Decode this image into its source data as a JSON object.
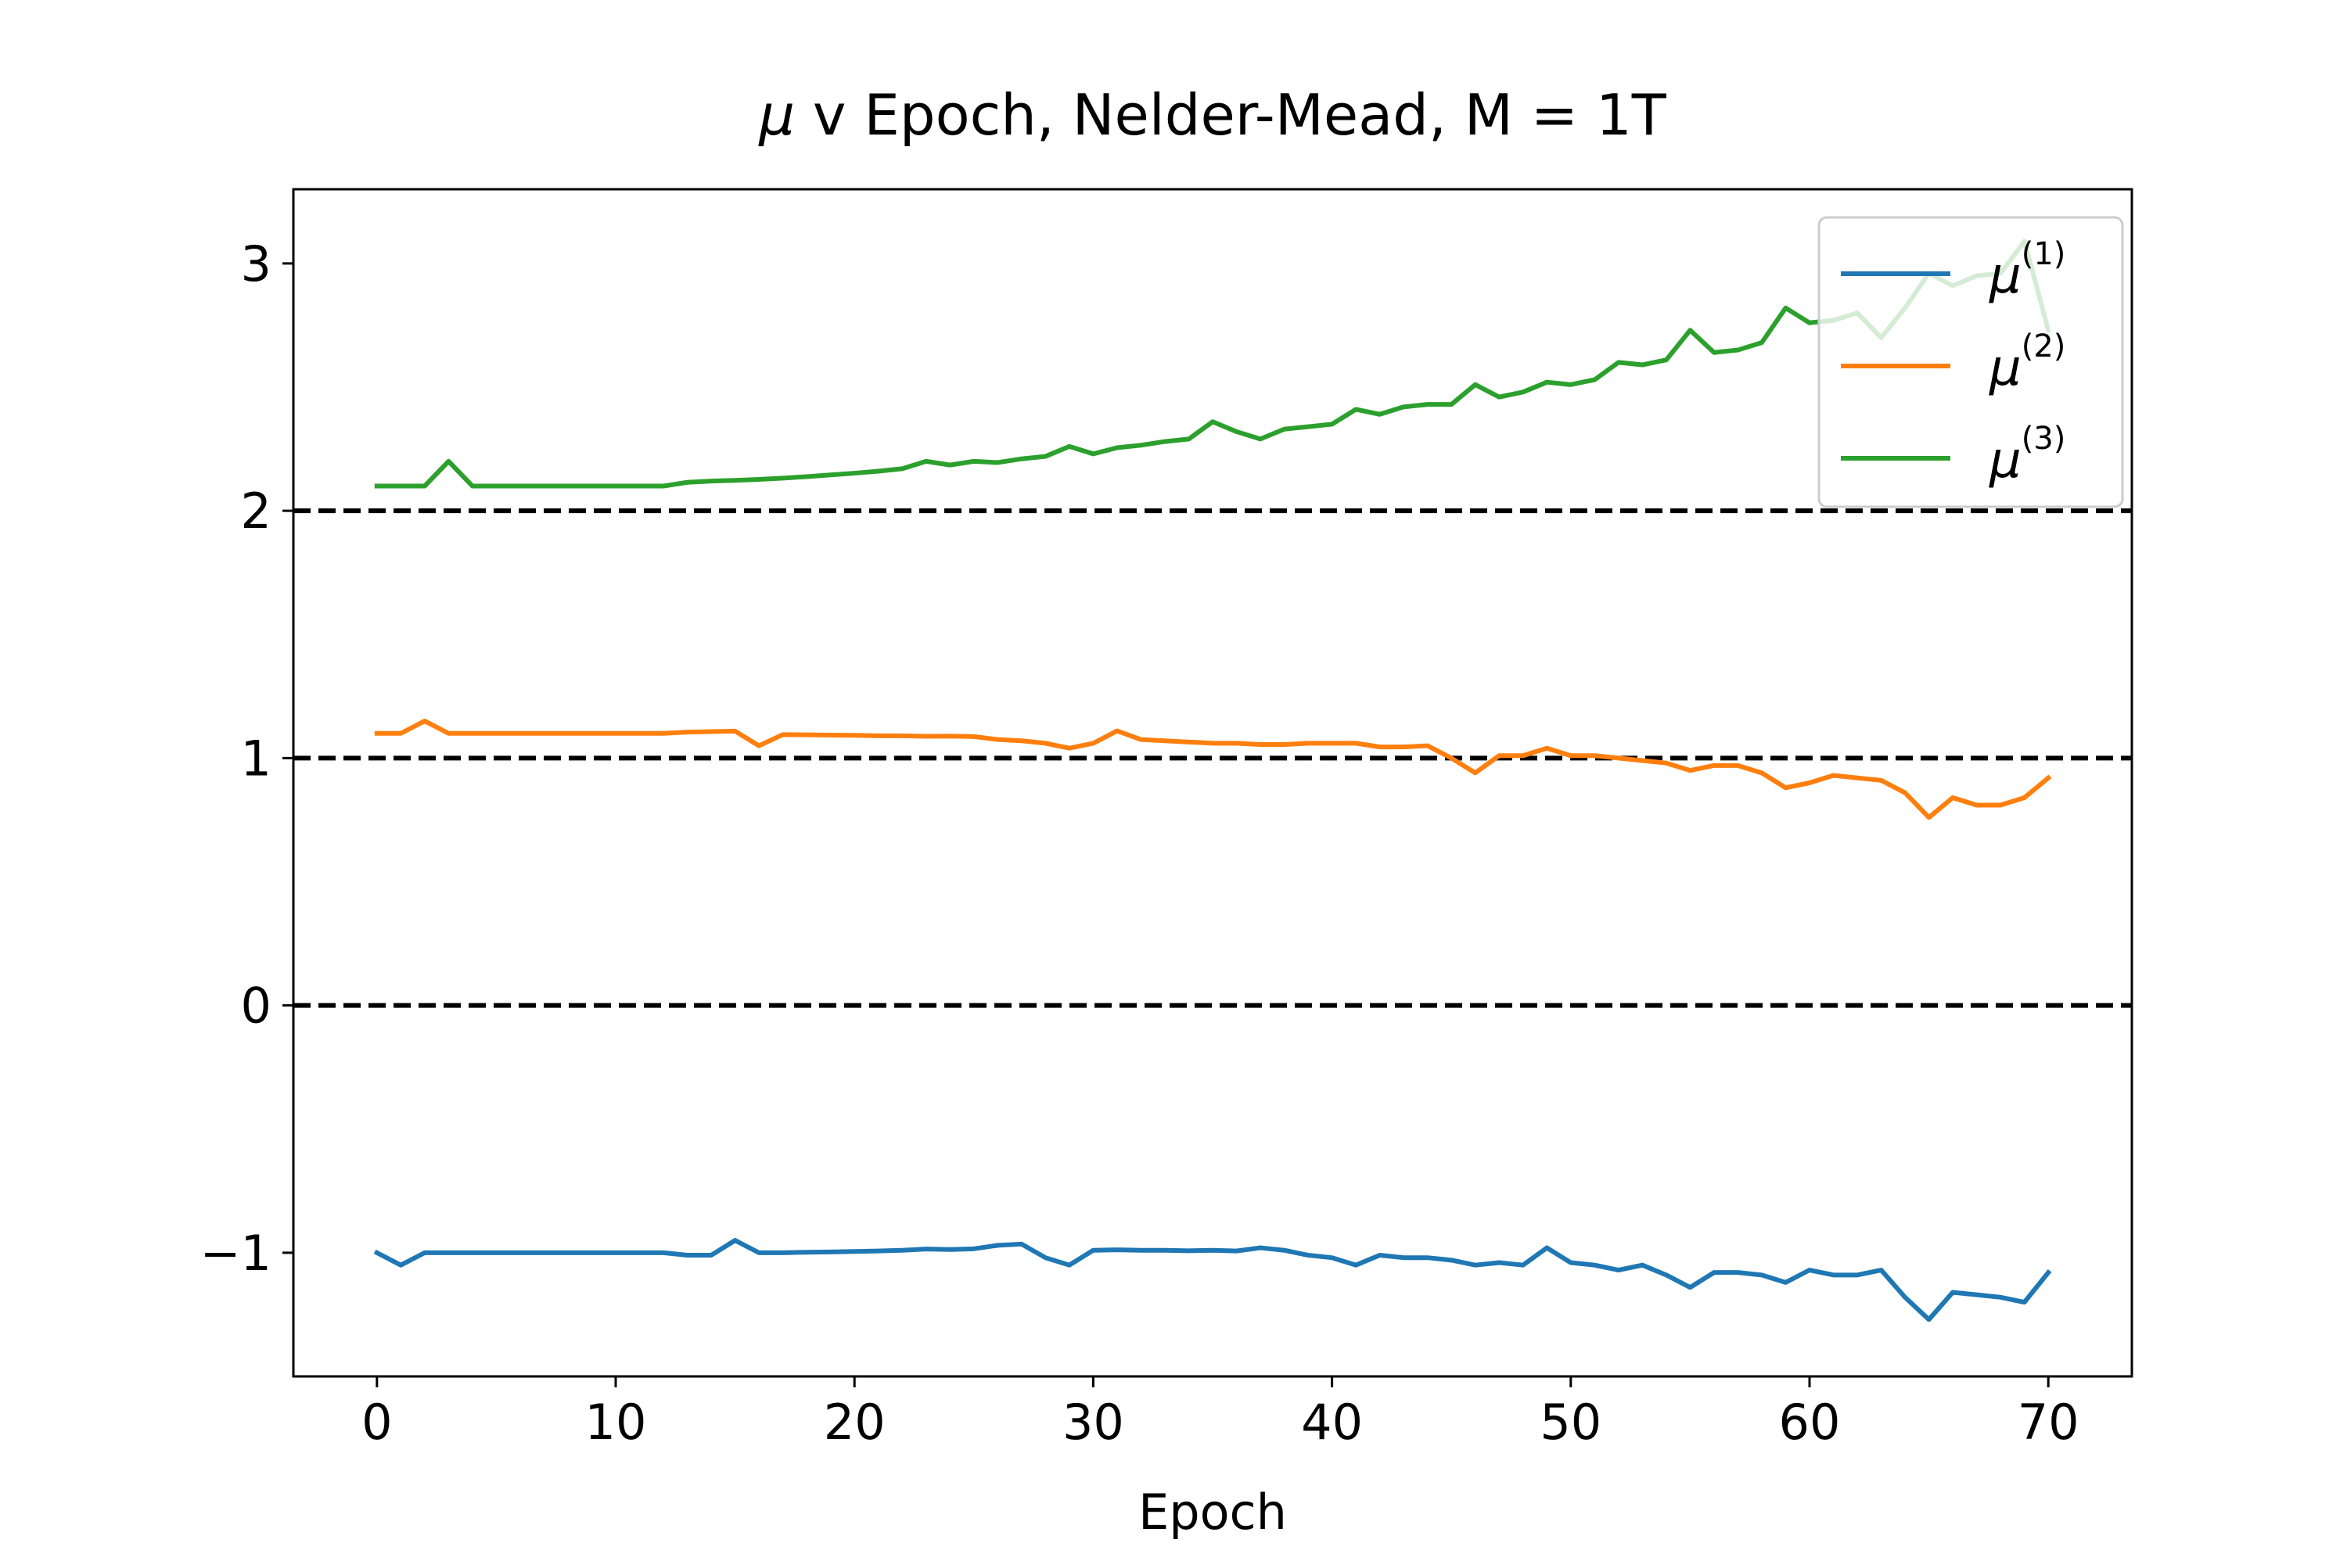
{
  "chart_data": {
    "type": "line",
    "title": "μ v Epoch, Nelder-Mead, M = 1T",
    "title_mu": "μ",
    "title_rest": " v Epoch, Nelder-Mead, M = 1T",
    "xlabel": "Epoch",
    "ylabel": "",
    "xlim": [
      -3.5,
      73.5
    ],
    "ylim": [
      -1.5,
      3.3
    ],
    "xticks": [
      0,
      10,
      20,
      30,
      40,
      50,
      60,
      70
    ],
    "xtick_labels": [
      "0",
      "10",
      "20",
      "30",
      "40",
      "50",
      "60",
      "70"
    ],
    "yticks": [
      -1,
      0,
      1,
      2,
      3
    ],
    "ytick_labels": [
      "−1",
      "0",
      "1",
      "2",
      "3"
    ],
    "grid": false,
    "legend_position": "top-right",
    "reference_lines": [
      {
        "y": 0,
        "style": "dashed",
        "color": "#000000"
      },
      {
        "y": 1,
        "style": "dashed",
        "color": "#000000"
      },
      {
        "y": 2,
        "style": "dashed",
        "color": "#000000"
      }
    ],
    "x": [
      0,
      1,
      2,
      3,
      4,
      5,
      6,
      7,
      8,
      9,
      10,
      11,
      12,
      13,
      14,
      15,
      16,
      17,
      18,
      19,
      20,
      21,
      22,
      23,
      24,
      25,
      26,
      27,
      28,
      29,
      30,
      31,
      32,
      33,
      34,
      35,
      36,
      37,
      38,
      39,
      40,
      41,
      42,
      43,
      44,
      45,
      46,
      47,
      48,
      49,
      50,
      51,
      52,
      53,
      54,
      55,
      56,
      57,
      58,
      59,
      60,
      61,
      62,
      63,
      64,
      65,
      66,
      67,
      68,
      69,
      70
    ],
    "series": [
      {
        "name": "μ(1)",
        "symbol": "μ",
        "superscript": "(1)",
        "color": "#1f77b4",
        "values": [
          -1.0,
          -1.05,
          -1.0,
          -1.0,
          -1.0,
          -1.0,
          -1.0,
          -1.0,
          -1.0,
          -1.0,
          -1.0,
          -1.0,
          -1.0,
          -1.01,
          -1.01,
          -0.95,
          -1.0,
          -1.0,
          -0.998,
          -0.997,
          -0.995,
          -0.993,
          -0.99,
          -0.985,
          -0.987,
          -0.984,
          -0.97,
          -0.965,
          -1.02,
          -1.05,
          -0.99,
          -0.988,
          -0.99,
          -0.99,
          -0.992,
          -0.99,
          -0.993,
          -0.98,
          -0.99,
          -1.01,
          -1.02,
          -1.05,
          -1.01,
          -1.02,
          -1.02,
          -1.03,
          -1.05,
          -1.04,
          -1.05,
          -0.98,
          -1.04,
          -1.05,
          -1.07,
          -1.05,
          -1.09,
          -1.14,
          -1.08,
          -1.08,
          -1.09,
          -1.12,
          -1.07,
          -1.09,
          -1.09,
          -1.07,
          -1.18,
          -1.27,
          -1.16,
          -1.17,
          -1.18,
          -1.2,
          -1.08
        ]
      },
      {
        "name": "μ(2)",
        "symbol": "μ",
        "superscript": "(2)",
        "color": "#ff7f0e",
        "values": [
          1.1,
          1.1,
          1.15,
          1.1,
          1.1,
          1.1,
          1.1,
          1.1,
          1.1,
          1.1,
          1.1,
          1.1,
          1.1,
          1.105,
          1.107,
          1.109,
          1.05,
          1.095,
          1.094,
          1.093,
          1.092,
          1.09,
          1.09,
          1.088,
          1.089,
          1.087,
          1.075,
          1.07,
          1.06,
          1.04,
          1.06,
          1.11,
          1.075,
          1.07,
          1.065,
          1.06,
          1.06,
          1.055,
          1.055,
          1.06,
          1.06,
          1.06,
          1.045,
          1.045,
          1.05,
          1.0,
          0.94,
          1.01,
          1.01,
          1.04,
          1.01,
          1.01,
          1.0,
          0.99,
          0.98,
          0.95,
          0.97,
          0.97,
          0.94,
          0.88,
          0.9,
          0.93,
          0.92,
          0.91,
          0.86,
          0.76,
          0.84,
          0.81,
          0.81,
          0.84,
          0.92
        ]
      },
      {
        "name": "μ(3)",
        "symbol": "μ",
        "superscript": "(3)",
        "color": "#2ca02c",
        "values": [
          2.1,
          2.1,
          2.1,
          2.2,
          2.1,
          2.1,
          2.1,
          2.1,
          2.1,
          2.1,
          2.1,
          2.1,
          2.1,
          2.115,
          2.12,
          2.123,
          2.127,
          2.132,
          2.138,
          2.145,
          2.152,
          2.16,
          2.17,
          2.2,
          2.185,
          2.2,
          2.195,
          2.21,
          2.22,
          2.26,
          2.23,
          2.255,
          2.265,
          2.28,
          2.29,
          2.36,
          2.32,
          2.29,
          2.33,
          2.34,
          2.35,
          2.41,
          2.39,
          2.42,
          2.43,
          2.43,
          2.51,
          2.46,
          2.48,
          2.52,
          2.51,
          2.53,
          2.6,
          2.59,
          2.61,
          2.73,
          2.64,
          2.65,
          2.68,
          2.82,
          2.76,
          2.77,
          2.8,
          2.7,
          2.82,
          2.96,
          2.91,
          2.95,
          2.96,
          3.09,
          2.73
        ]
      }
    ]
  }
}
